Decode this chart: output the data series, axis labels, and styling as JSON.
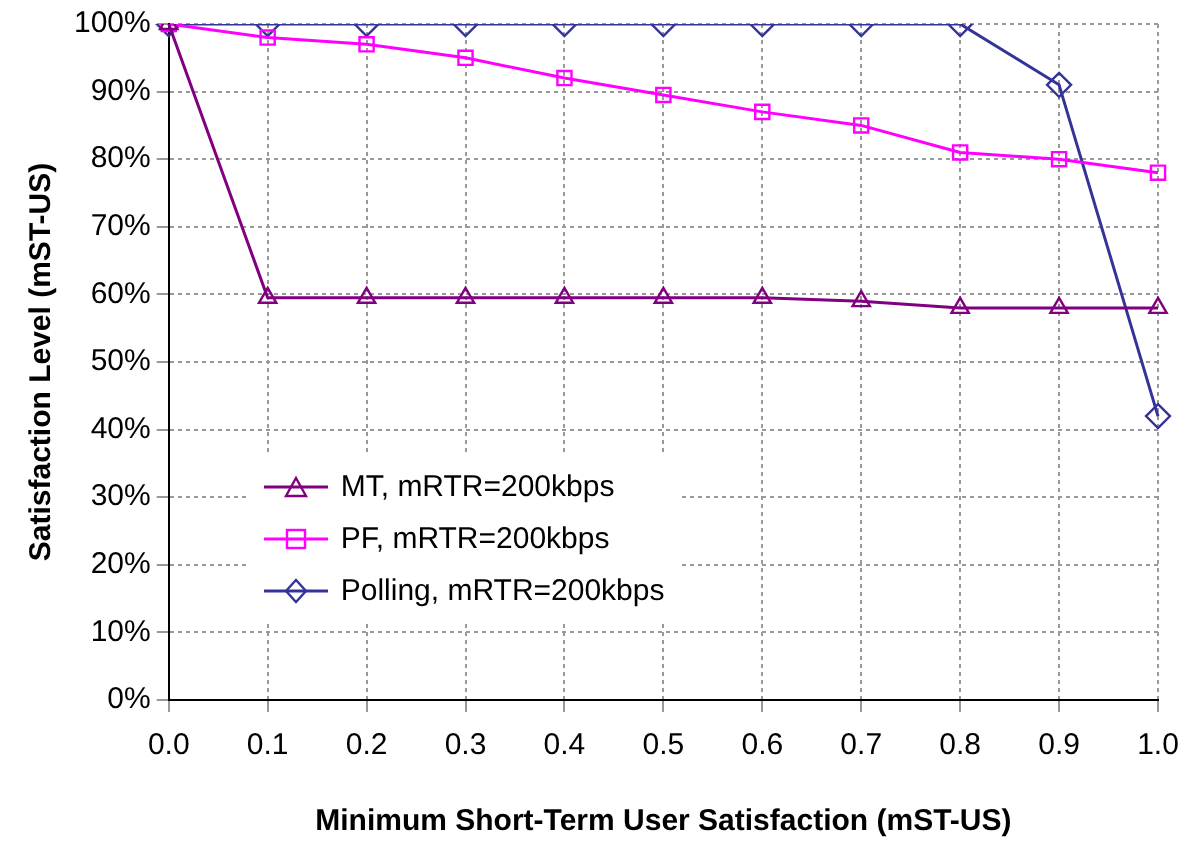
{
  "chart_data": {
    "type": "line",
    "xlabel": "Minimum Short-Term User Satisfaction (mST-US)",
    "ylabel": "Satisfaction Level (mST-US)",
    "categories": [
      "0.0",
      "0.1",
      "0.2",
      "0.3",
      "0.4",
      "0.5",
      "0.6",
      "0.7",
      "0.8",
      "0.9",
      "1.0"
    ],
    "ylim": [
      0,
      100
    ],
    "yticks": [
      {
        "value": 0,
        "label": "0%"
      },
      {
        "value": 10,
        "label": "10%"
      },
      {
        "value": 20,
        "label": "20%"
      },
      {
        "value": 30,
        "label": "30%"
      },
      {
        "value": 40,
        "label": "40%"
      },
      {
        "value": 50,
        "label": "50%"
      },
      {
        "value": 60,
        "label": "60%"
      },
      {
        "value": 70,
        "label": "70%"
      },
      {
        "value": 80,
        "label": "80%"
      },
      {
        "value": 90,
        "label": "90%"
      },
      {
        "value": 100,
        "label": "100%"
      }
    ],
    "grid": true,
    "legend": "bottom left",
    "series": [
      {
        "name": "MT, mRTR=200kbps",
        "color": "#800080",
        "marker": "triangle",
        "values": [
          100,
          59.5,
          59.5,
          59.5,
          59.5,
          59.5,
          59.5,
          59,
          58,
          58,
          58
        ]
      },
      {
        "name": "PF, mRTR=200kbps",
        "color": "#ff00ff",
        "marker": "square",
        "values": [
          100,
          98,
          97,
          95,
          92,
          89.5,
          87,
          85,
          81,
          80,
          78
        ]
      },
      {
        "name": "Polling, mRTR=200kbps",
        "color": "#333399",
        "marker": "diamond",
        "values": [
          100,
          100,
          100,
          100,
          100,
          100,
          100,
          100,
          100,
          91,
          42
        ]
      }
    ]
  }
}
